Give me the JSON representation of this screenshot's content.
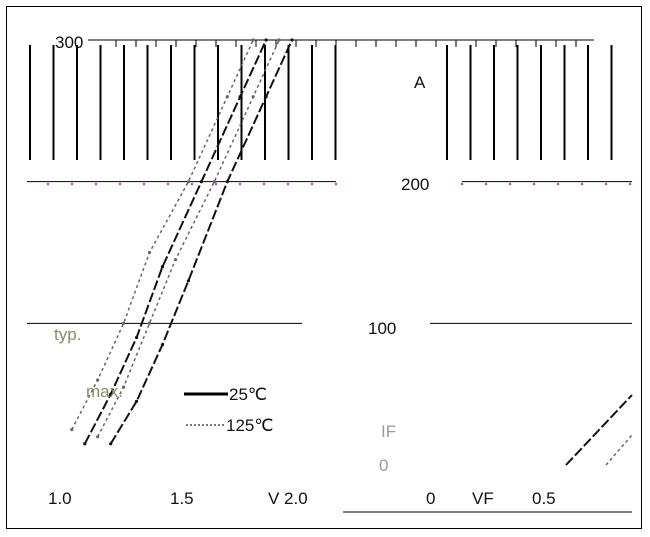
{
  "chart_data": {
    "type": "line",
    "ylabel": "IF",
    "yunit": "A",
    "xlabel": "VF",
    "xunit": "V",
    "y_tick_labels": [
      "300",
      "200",
      "100",
      "0"
    ],
    "x_tick_labels_left": [
      "1.0",
      "1.5",
      "V 2.0"
    ],
    "x_tick_labels_right": [
      "0",
      "0.5"
    ],
    "xlim": [
      0.0,
      2.0
    ],
    "ylim": [
      0,
      300
    ],
    "legend": {
      "placement": "bottom-left",
      "entries": [
        {
          "label": "25℃",
          "style": "solid"
        },
        {
          "label": "125℃",
          "style": "dotted"
        }
      ]
    },
    "annotations": [
      "typ.",
      "max."
    ],
    "series": [
      {
        "label": "typ. 25℃",
        "style": "solid",
        "x": [
          1.0,
          1.1,
          1.2,
          1.3,
          1.45,
          1.6,
          1.7
        ],
        "y": [
          15,
          50,
          90,
          140,
          200,
          260,
          300
        ]
      },
      {
        "label": "max. 25℃",
        "style": "solid",
        "x": [
          1.1,
          1.2,
          1.3,
          1.4,
          1.55,
          1.7,
          1.8
        ],
        "y": [
          15,
          45,
          85,
          130,
          200,
          260,
          300
        ]
      },
      {
        "label": "typ. 125℃",
        "style": "dotted",
        "x": [
          0.95,
          1.05,
          1.15,
          1.25,
          1.4,
          1.55,
          1.65
        ],
        "y": [
          25,
          60,
          100,
          150,
          200,
          260,
          300
        ]
      },
      {
        "label": "max. 125℃",
        "style": "dotted",
        "x": [
          1.05,
          1.15,
          1.25,
          1.35,
          1.5,
          1.65,
          1.75
        ],
        "y": [
          20,
          55,
          100,
          145,
          200,
          260,
          300
        ]
      }
    ]
  }
}
